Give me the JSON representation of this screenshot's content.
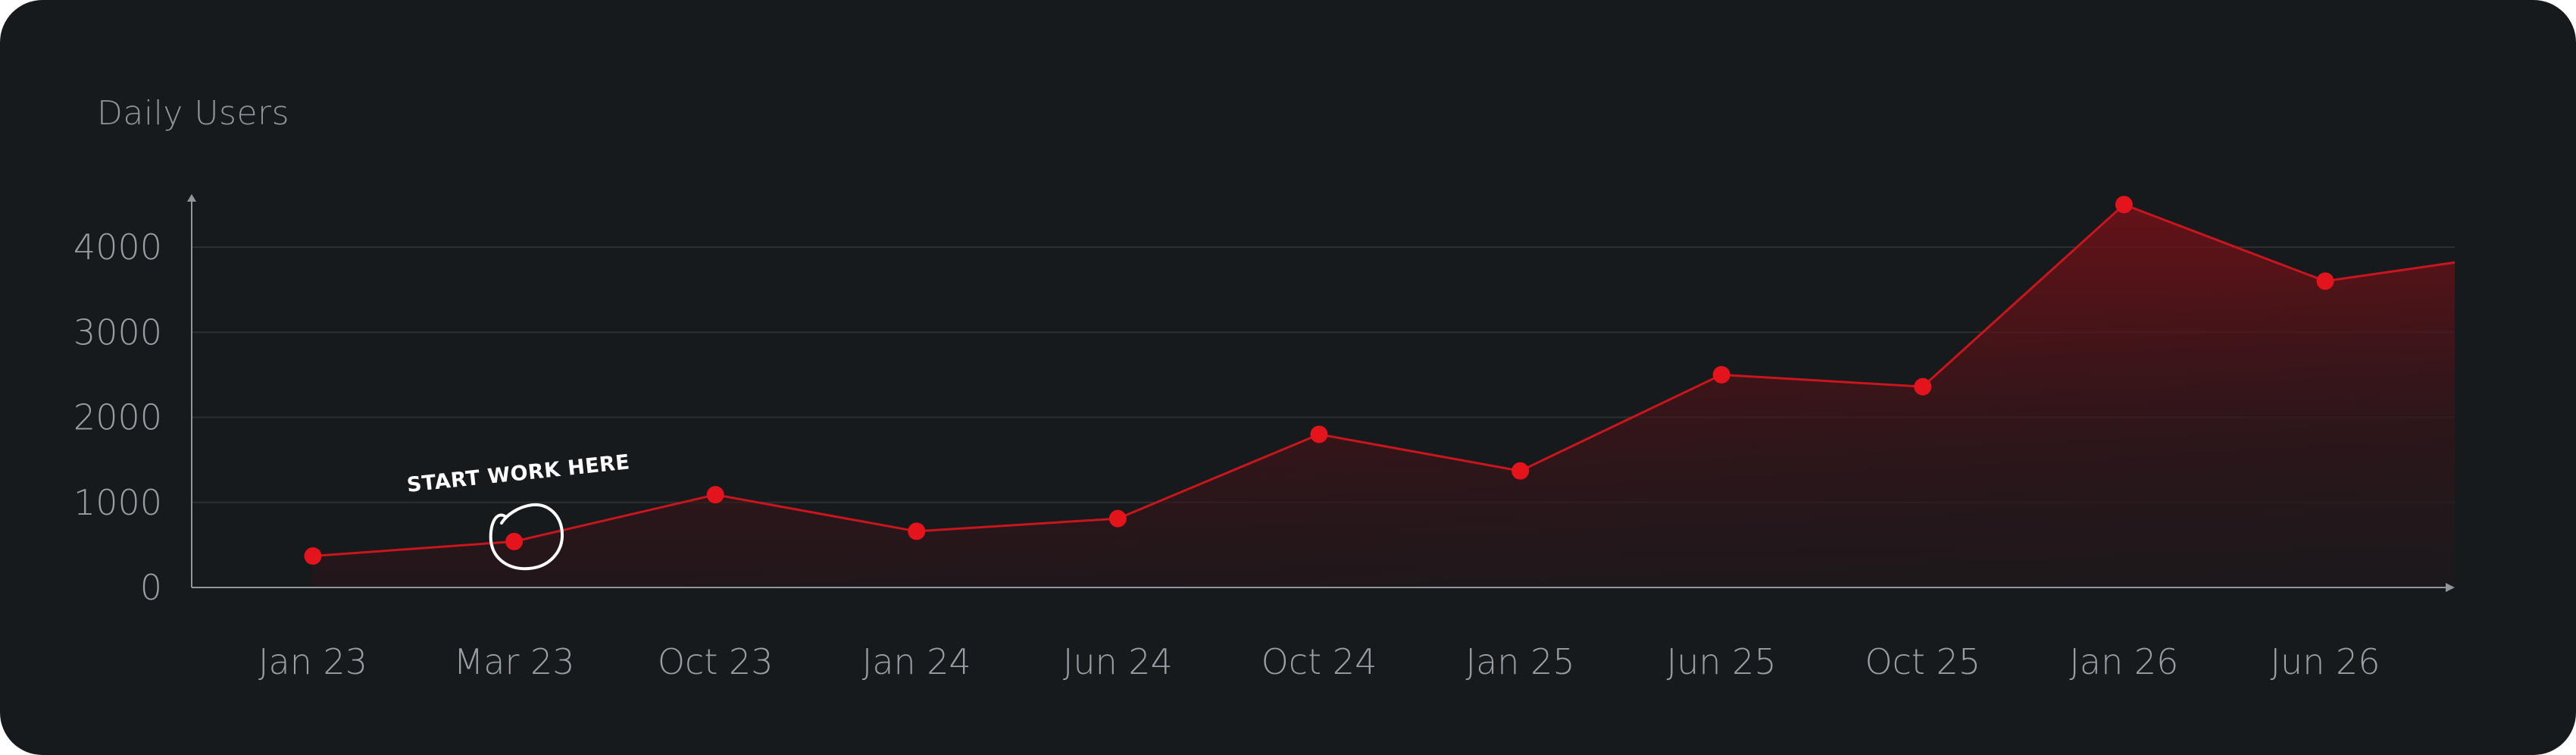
{
  "card": {
    "title": "Daily Users"
  },
  "colors": {
    "background": "#171a1d",
    "accent": "#e3141c",
    "line": "#c8161c",
    "grid": "#2c3034",
    "axis": "#8f969d",
    "annotation": "#ffffff"
  },
  "chart_data": {
    "type": "area",
    "title": "",
    "xlabel": "",
    "ylabel": "",
    "categories": [
      "Jan 23",
      "Mar 23",
      "Oct 23",
      "Jan 24",
      "Jun 24",
      "Oct 24",
      "Jan 25",
      "Jun 25",
      "Oct 25",
      "Jan 26",
      "Jun 26"
    ],
    "values": [
      370,
      540,
      1090,
      660,
      810,
      1800,
      1370,
      2500,
      2360,
      4500,
      3600
    ],
    "line_end_value": 3820,
    "y_ticks": [
      0,
      1000,
      2000,
      3000,
      4000
    ],
    "ylim": [
      0,
      4500
    ],
    "grid": true,
    "legend": "none",
    "annotation": {
      "text": "START WORK HERE",
      "category": "Mar 23",
      "style": "hand-drawn circle"
    }
  }
}
